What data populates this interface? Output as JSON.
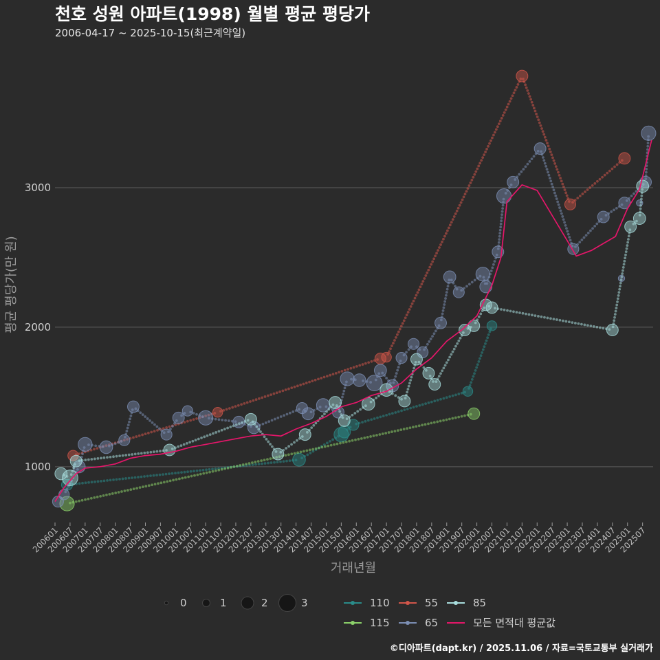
{
  "chart_data": {
    "type": "scatter",
    "title": "천호 성원 아파트(1998) 월별 평균 평당가",
    "subtitle": "2006-04-17 ~ 2025-10-15(최근계약일)",
    "xlabel": "거래년월",
    "ylabel": "평균 평당가(만 원)",
    "xlim": [
      2006.0,
      2025.85
    ],
    "ylim": [
      600,
      4000
    ],
    "yticks": [
      1000,
      2000,
      3000
    ],
    "xtick_labels": [
      "200601",
      "200607",
      "200701",
      "200707",
      "200801",
      "200807",
      "200901",
      "200907",
      "201001",
      "201007",
      "201101",
      "201107",
      "201201",
      "201207",
      "201301",
      "201307",
      "201401",
      "201407",
      "201501",
      "201507",
      "201601",
      "201607",
      "201701",
      "201707",
      "201801",
      "201807",
      "201901",
      "201907",
      "202001",
      "202007",
      "202101",
      "202107",
      "202201",
      "202207",
      "202301",
      "202307",
      "202401",
      "202407",
      "202501",
      "202507"
    ],
    "size_legend": {
      "values": [
        "0",
        "1",
        "2",
        "3"
      ]
    },
    "series": [
      {
        "name": "110",
        "color": "#2a8c8a",
        "points": [
          [
            2006.4,
            870,
            1.2
          ],
          [
            2014.1,
            1050,
            1.5
          ],
          [
            2015.5,
            1230,
            1.8
          ],
          [
            2015.6,
            1250,
            1.4
          ],
          [
            2015.9,
            1300,
            1.2
          ],
          [
            2019.7,
            1540,
            1.0
          ],
          [
            2020.5,
            2010,
            1.0
          ]
        ]
      },
      {
        "name": "115",
        "color": "#8cd26a",
        "points": [
          [
            2006.4,
            735,
            1.8
          ],
          [
            2019.9,
            1380,
            1.3
          ]
        ]
      },
      {
        "name": "55",
        "color": "#d2564a",
        "points": [
          [
            2006.6,
            1080,
            1.1
          ],
          [
            2011.4,
            1390,
            1.0
          ],
          [
            2016.8,
            1775,
            1.2
          ],
          [
            2017.0,
            1785,
            1.0
          ],
          [
            2021.5,
            3800,
            1.3
          ],
          [
            2023.1,
            2880,
            1.2
          ],
          [
            2024.9,
            3210,
            1.3
          ]
        ]
      },
      {
        "name": "65",
        "color": "#7c8fb4",
        "points": [
          [
            2006.1,
            750,
            1.2
          ],
          [
            2006.3,
            800,
            1.1
          ],
          [
            2006.8,
            1000,
            1.4
          ],
          [
            2007.0,
            1160,
            1.7
          ],
          [
            2007.7,
            1140,
            1.5
          ],
          [
            2008.3,
            1190,
            1.2
          ],
          [
            2008.6,
            1430,
            1.3
          ],
          [
            2009.7,
            1230,
            1.2
          ],
          [
            2010.1,
            1350,
            1.3
          ],
          [
            2010.4,
            1400,
            1.1
          ],
          [
            2011.0,
            1350,
            1.8
          ],
          [
            2012.1,
            1320,
            1.3
          ],
          [
            2012.6,
            1280,
            1.4
          ],
          [
            2014.2,
            1420,
            1.2
          ],
          [
            2014.4,
            1380,
            1.4
          ],
          [
            2014.9,
            1440,
            1.6
          ],
          [
            2015.4,
            1390,
            1.3
          ],
          [
            2015.7,
            1630,
            1.7
          ],
          [
            2016.1,
            1620,
            1.5
          ],
          [
            2016.6,
            1600,
            2.0
          ],
          [
            2016.8,
            1690,
            1.4
          ],
          [
            2017.2,
            1580,
            1.4
          ],
          [
            2017.5,
            1780,
            1.2
          ],
          [
            2017.9,
            1880,
            1.2
          ],
          [
            2018.2,
            1820,
            1.2
          ],
          [
            2018.8,
            2030,
            1.3
          ],
          [
            2019.1,
            2360,
            1.4
          ],
          [
            2019.4,
            2250,
            1.2
          ],
          [
            2020.2,
            2380,
            1.7
          ],
          [
            2020.3,
            2290,
            1.4
          ],
          [
            2020.7,
            2540,
            1.3
          ],
          [
            2020.9,
            2940,
            1.8
          ],
          [
            2021.2,
            3040,
            1.3
          ],
          [
            2022.1,
            3280,
            1.3
          ],
          [
            2023.2,
            2560,
            1.2
          ],
          [
            2024.2,
            2790,
            1.3
          ],
          [
            2024.9,
            2890,
            1.3
          ],
          [
            2025.6,
            3040,
            1.3
          ],
          [
            2025.7,
            3390,
            1.8
          ],
          [
            2024.8,
            2350,
            0.4
          ],
          [
            2025.4,
            2890,
            0.4
          ]
        ]
      },
      {
        "name": "85",
        "color": "#a9dede",
        "points": [
          [
            2006.2,
            950,
            1.4
          ],
          [
            2006.5,
            920,
            2.0
          ],
          [
            2006.7,
            1040,
            1.3
          ],
          [
            2009.8,
            1120,
            1.3
          ],
          [
            2012.5,
            1340,
            1.3
          ],
          [
            2013.4,
            1090,
            1.3
          ],
          [
            2014.3,
            1230,
            1.3
          ],
          [
            2015.3,
            1460,
            1.4
          ],
          [
            2015.6,
            1330,
            1.3
          ],
          [
            2016.4,
            1450,
            1.5
          ],
          [
            2017.0,
            1550,
            1.5
          ],
          [
            2017.6,
            1470,
            1.3
          ],
          [
            2018.0,
            1770,
            1.3
          ],
          [
            2018.4,
            1670,
            1.3
          ],
          [
            2018.6,
            1590,
            1.3
          ],
          [
            2019.6,
            1980,
            1.3
          ],
          [
            2019.9,
            2010,
            1.3
          ],
          [
            2020.3,
            2160,
            1.3
          ],
          [
            2020.5,
            2140,
            1.3
          ],
          [
            2024.5,
            1980,
            1.3
          ],
          [
            2025.1,
            2720,
            1.3
          ],
          [
            2025.4,
            2780,
            1.4
          ],
          [
            2025.5,
            3010,
            1.4
          ]
        ]
      }
    ],
    "average": {
      "name": "모든 면적대 평균값",
      "color": "#e6166a",
      "points": [
        [
          2006.0,
          750
        ],
        [
          2006.3,
          850
        ],
        [
          2006.7,
          950
        ],
        [
          2007.0,
          990
        ],
        [
          2007.5,
          1000
        ],
        [
          2008.0,
          1020
        ],
        [
          2008.5,
          1060
        ],
        [
          2009.0,
          1080
        ],
        [
          2009.5,
          1090
        ],
        [
          2010.0,
          1110
        ],
        [
          2010.5,
          1140
        ],
        [
          2011.0,
          1160
        ],
        [
          2011.5,
          1180
        ],
        [
          2012.0,
          1200
        ],
        [
          2012.5,
          1220
        ],
        [
          2013.0,
          1230
        ],
        [
          2013.5,
          1220
        ],
        [
          2014.0,
          1270
        ],
        [
          2014.5,
          1310
        ],
        [
          2015.0,
          1360
        ],
        [
          2015.5,
          1430
        ],
        [
          2016.0,
          1460
        ],
        [
          2016.5,
          1510
        ],
        [
          2017.0,
          1540
        ],
        [
          2017.5,
          1600
        ],
        [
          2018.0,
          1700
        ],
        [
          2018.5,
          1780
        ],
        [
          2019.0,
          1900
        ],
        [
          2019.5,
          1980
        ],
        [
          2020.0,
          2080
        ],
        [
          2020.5,
          2300
        ],
        [
          2020.8,
          2500
        ],
        [
          2021.0,
          2900
        ],
        [
          2021.5,
          3020
        ],
        [
          2022.0,
          2980
        ],
        [
          2022.5,
          2800
        ],
        [
          2023.0,
          2620
        ],
        [
          2023.3,
          2510
        ],
        [
          2023.8,
          2550
        ],
        [
          2024.2,
          2600
        ],
        [
          2024.6,
          2650
        ],
        [
          2025.0,
          2850
        ],
        [
          2025.4,
          2990
        ],
        [
          2025.8,
          3340
        ]
      ]
    },
    "footer": "©디아파트(dapt.kr) / 2025.11.06 / 자료=국토교통부 실거래가"
  }
}
